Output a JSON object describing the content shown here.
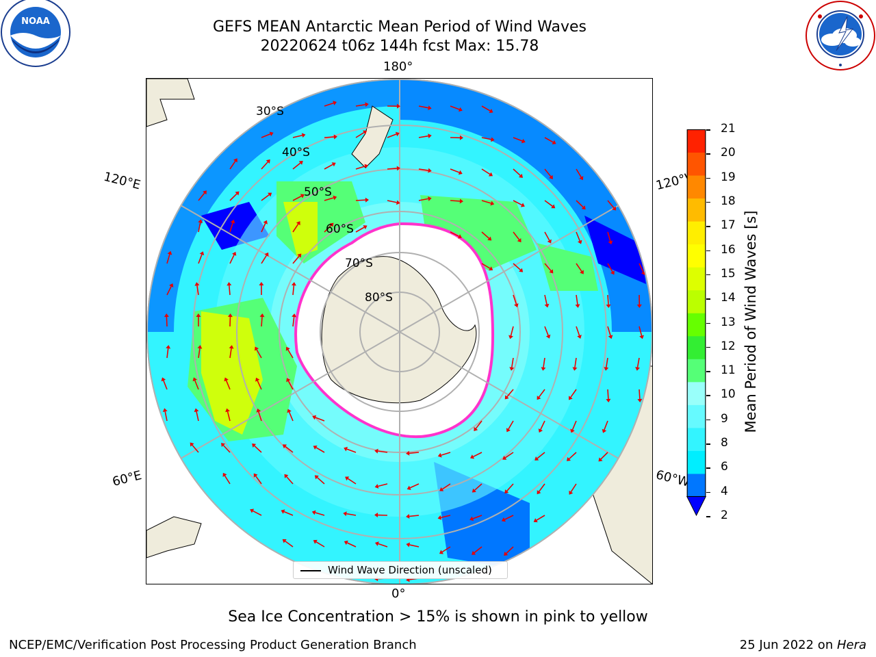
{
  "title": {
    "line1": "GEFS MEAN Antarctic Mean Period of Wind Waves",
    "line2": "20220624 t06z 144h fcst   Max: 15.78"
  },
  "logos": {
    "noaa": {
      "text": "NOAA",
      "ring_text": "NATIONAL OCEANIC AND ATMOSPHERIC ADMINISTRATION · U.S. DEPARTMENT OF COMMERCE",
      "icon": "noaa-logo"
    },
    "nws": {
      "ring_text": "NATIONAL WEATHER SERVICE",
      "icon": "nws-logo"
    }
  },
  "map": {
    "projection": "south-polar-stereographic",
    "longitude_labels": {
      "top": "180°",
      "bottom": "0°",
      "upper_left": "120°E",
      "upper_right": "120°W",
      "lower_left": "60°E",
      "lower_right": "60°W"
    },
    "latitude_labels": [
      "30°S",
      "40°S",
      "50°S",
      "60°S",
      "70°S",
      "80°S"
    ],
    "legend": "Wind Wave Direction (unscaled)",
    "colors": {
      "land": "#efecdc",
      "arrows": "#e80000",
      "graticule": "#b0b0b0",
      "ice_edge": "#ff33cc"
    }
  },
  "colorbar": {
    "label": "Mean Period of Wind Waves [s]",
    "ticks": [
      "2",
      "4",
      "6",
      "8",
      "9",
      "10",
      "11",
      "12",
      "13",
      "14",
      "15",
      "16",
      "17",
      "18",
      "19",
      "20",
      "21"
    ],
    "colors": [
      "#0077ff",
      "#00eeff",
      "#33f4ff",
      "#66faff",
      "#99fffa",
      "#55ff77",
      "#33ee33",
      "#66ff00",
      "#bbff00",
      "#ddff00",
      "#ffff00",
      "#ffee00",
      "#ffbb00",
      "#ff8800",
      "#ff5500",
      "#ff2200"
    ],
    "under_color": "#0000ff"
  },
  "caption": "Sea Ice Concentration > 15% is shown in pink to yellow",
  "footer": {
    "left": "NCEP/EMC/Verification Post Processing Product Generation Branch",
    "right_prefix": "25 Jun 2022 on ",
    "right_machine": "Hera"
  }
}
